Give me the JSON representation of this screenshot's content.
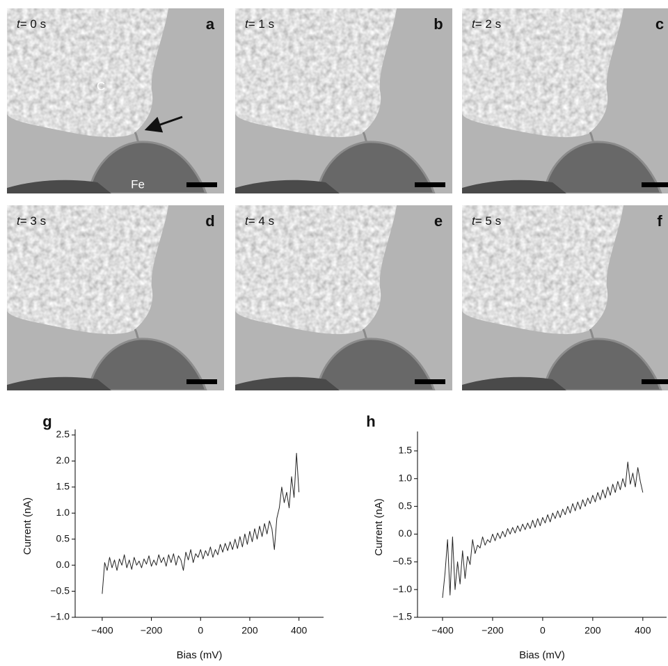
{
  "time_variable": "t",
  "panels": [
    {
      "letter": "a",
      "time": "= 0 s",
      "labels": {
        "carbon": "C",
        "iron": "Fe"
      }
    },
    {
      "letter": "b",
      "time": "= 1 s"
    },
    {
      "letter": "c",
      "time": "= 2 s"
    },
    {
      "letter": "d",
      "time": "= 3 s"
    },
    {
      "letter": "e",
      "time": "= 4 s"
    },
    {
      "letter": "f",
      "time": "= 5 s"
    }
  ],
  "chart_data": [
    {
      "type": "line",
      "label": "g",
      "x_label": "Bias (mV)",
      "y_label": "Current (nA)",
      "color": "#222222",
      "x": [
        -400,
        -390,
        -380,
        -370,
        -360,
        -350,
        -340,
        -330,
        -320,
        -310,
        -300,
        -290,
        -280,
        -270,
        -260,
        -250,
        -240,
        -230,
        -220,
        -210,
        -200,
        -190,
        -180,
        -170,
        -160,
        -150,
        -140,
        -130,
        -120,
        -110,
        -100,
        -90,
        -80,
        -70,
        -60,
        -50,
        -40,
        -30,
        -20,
        -10,
        0,
        10,
        20,
        30,
        40,
        50,
        60,
        70,
        80,
        90,
        100,
        110,
        120,
        130,
        140,
        150,
        160,
        170,
        180,
        190,
        200,
        210,
        220,
        230,
        240,
        250,
        260,
        270,
        280,
        290,
        300,
        310,
        320,
        330,
        340,
        350,
        360,
        370,
        380,
        390,
        400
      ],
      "values": [
        -0.55,
        0.05,
        -0.1,
        0.15,
        -0.05,
        0.1,
        -0.1,
        0.12,
        0.0,
        0.2,
        -0.05,
        0.1,
        -0.08,
        0.15,
        0.0,
        0.08,
        -0.05,
        0.12,
        0.02,
        0.18,
        -0.02,
        0.1,
        0.0,
        0.2,
        0.05,
        0.15,
        -0.02,
        0.2,
        0.05,
        0.22,
        0.0,
        0.18,
        0.1,
        -0.1,
        0.25,
        0.1,
        0.3,
        0.05,
        0.22,
        0.15,
        0.3,
        0.12,
        0.28,
        0.18,
        0.35,
        0.15,
        0.3,
        0.2,
        0.4,
        0.25,
        0.42,
        0.28,
        0.45,
        0.3,
        0.5,
        0.32,
        0.55,
        0.35,
        0.6,
        0.4,
        0.65,
        0.45,
        0.7,
        0.5,
        0.75,
        0.55,
        0.8,
        0.6,
        0.85,
        0.7,
        0.3,
        0.9,
        1.1,
        1.5,
        1.2,
        1.4,
        1.1,
        1.7,
        1.3,
        2.15,
        1.4
      ],
      "xlim": [
        -510,
        500
      ],
      "xticks": [
        {
          "value": -400,
          "label": "−400"
        },
        {
          "value": -200,
          "label": "−200"
        },
        0,
        200,
        400
      ],
      "ylim": [
        -1,
        2.5
      ],
      "yticks": [
        {
          "value": -1,
          "label": "−1.0"
        },
        {
          "value": -0.5,
          "label": "−0.5"
        },
        {
          "value": 0,
          "label": "0.0"
        },
        0.5,
        {
          "value": 1,
          "label": "1.0"
        },
        1.5,
        {
          "value": 2,
          "label": "2.0"
        },
        2.5
      ]
    },
    {
      "type": "line",
      "label": "h",
      "x_label": "Bias (mV)",
      "y_label": "Current (nA)",
      "color": "#222222",
      "x": [
        -400,
        -390,
        -380,
        -370,
        -360,
        -350,
        -340,
        -330,
        -320,
        -310,
        -300,
        -290,
        -280,
        -270,
        -260,
        -250,
        -240,
        -230,
        -220,
        -210,
        -200,
        -190,
        -180,
        -170,
        -160,
        -150,
        -140,
        -130,
        -120,
        -110,
        -100,
        -90,
        -80,
        -70,
        -60,
        -50,
        -40,
        -30,
        -20,
        -10,
        0,
        10,
        20,
        30,
        40,
        50,
        60,
        70,
        80,
        90,
        100,
        110,
        120,
        130,
        140,
        150,
        160,
        170,
        180,
        190,
        200,
        210,
        220,
        230,
        240,
        250,
        260,
        270,
        280,
        290,
        300,
        310,
        320,
        330,
        340,
        350,
        360,
        370,
        380,
        390,
        400
      ],
      "values": [
        -1.15,
        -0.7,
        -0.1,
        -1.1,
        -0.05,
        -1.0,
        -0.5,
        -0.9,
        -0.3,
        -0.8,
        -0.4,
        -0.55,
        -0.1,
        -0.35,
        -0.2,
        -0.25,
        -0.05,
        -0.2,
        -0.1,
        -0.15,
        0.0,
        -0.12,
        0.02,
        -0.08,
        0.05,
        -0.05,
        0.1,
        0.0,
        0.12,
        0.02,
        0.15,
        0.05,
        0.18,
        0.08,
        0.2,
        0.1,
        0.25,
        0.12,
        0.28,
        0.15,
        0.3,
        0.2,
        0.35,
        0.22,
        0.38,
        0.28,
        0.42,
        0.3,
        0.45,
        0.35,
        0.5,
        0.38,
        0.55,
        0.42,
        0.58,
        0.45,
        0.62,
        0.5,
        0.65,
        0.55,
        0.7,
        0.58,
        0.75,
        0.62,
        0.8,
        0.65,
        0.85,
        0.7,
        0.9,
        0.75,
        0.95,
        0.8,
        1.0,
        0.85,
        1.3,
        0.9,
        1.1,
        0.85,
        1.2,
        0.95,
        0.75
      ],
      "xlim": [
        -500,
        495
      ],
      "xticks": [
        {
          "value": -400,
          "label": "−400"
        },
        {
          "value": -200,
          "label": "−200"
        },
        0,
        200,
        400
      ],
      "ylim": [
        -1.5,
        1.75
      ],
      "yticks": [
        {
          "value": -1.5,
          "label": "−1.5"
        },
        {
          "value": -1,
          "label": "−1.0"
        },
        {
          "value": -0.5,
          "label": "−0.5"
        },
        {
          "value": 0,
          "label": "0.0"
        },
        0.5,
        {
          "value": 1,
          "label": "1.0"
        },
        1.5
      ]
    }
  ]
}
